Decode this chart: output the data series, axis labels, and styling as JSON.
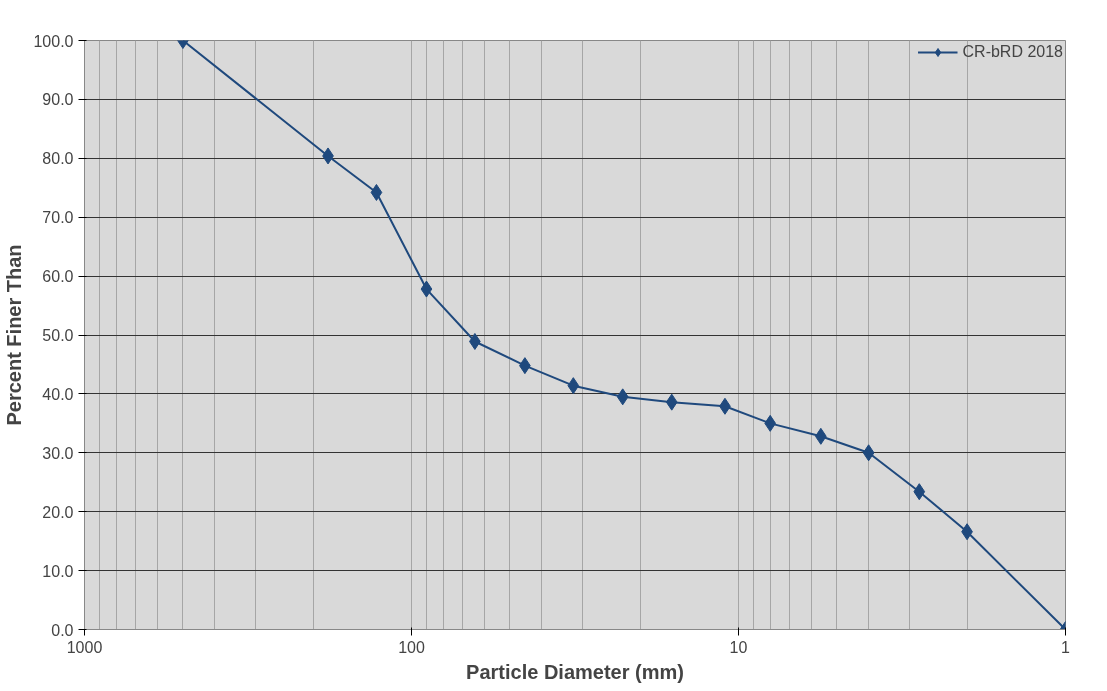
{
  "chart_data": {
    "type": "line",
    "xlabel": "Particle Diameter (mm)",
    "ylabel": "Percent Finer Than",
    "x": [
      500,
      180,
      128,
      90,
      64,
      45,
      32,
      22.6,
      16,
      11,
      8,
      5.6,
      4,
      2.8,
      2,
      1
    ],
    "series": [
      {
        "name": "CR-bRD 2018",
        "color": "#1f497d",
        "values": [
          100,
          80.4,
          74.2,
          57.8,
          48.9,
          44.8,
          41.4,
          39.5,
          38.6,
          37.9,
          35.0,
          32.8,
          30.0,
          23.4,
          16.6,
          0
        ]
      }
    ],
    "log": "x",
    "xlim": [
      1000,
      1
    ],
    "xticks": [
      1000,
      100,
      10,
      1
    ],
    "ylim": [
      0,
      100
    ],
    "yticks": [
      {
        "value": 0,
        "label": "0.0"
      },
      {
        "value": 10,
        "label": "10.0"
      },
      {
        "value": 20,
        "label": "20.0"
      },
      {
        "value": 30,
        "label": "30.0"
      },
      {
        "value": 40,
        "label": "40.0"
      },
      {
        "value": 50,
        "label": "50.0"
      },
      {
        "value": 60,
        "label": "60.0"
      },
      {
        "value": 70,
        "label": "70.0"
      },
      {
        "value": 80,
        "label": "80.0"
      },
      {
        "value": 90,
        "label": "90.0"
      },
      {
        "value": 100,
        "label": "100.0"
      }
    ],
    "grid": true,
    "legend": "top right",
    "marker": "diamond",
    "line_style": "solid"
  }
}
